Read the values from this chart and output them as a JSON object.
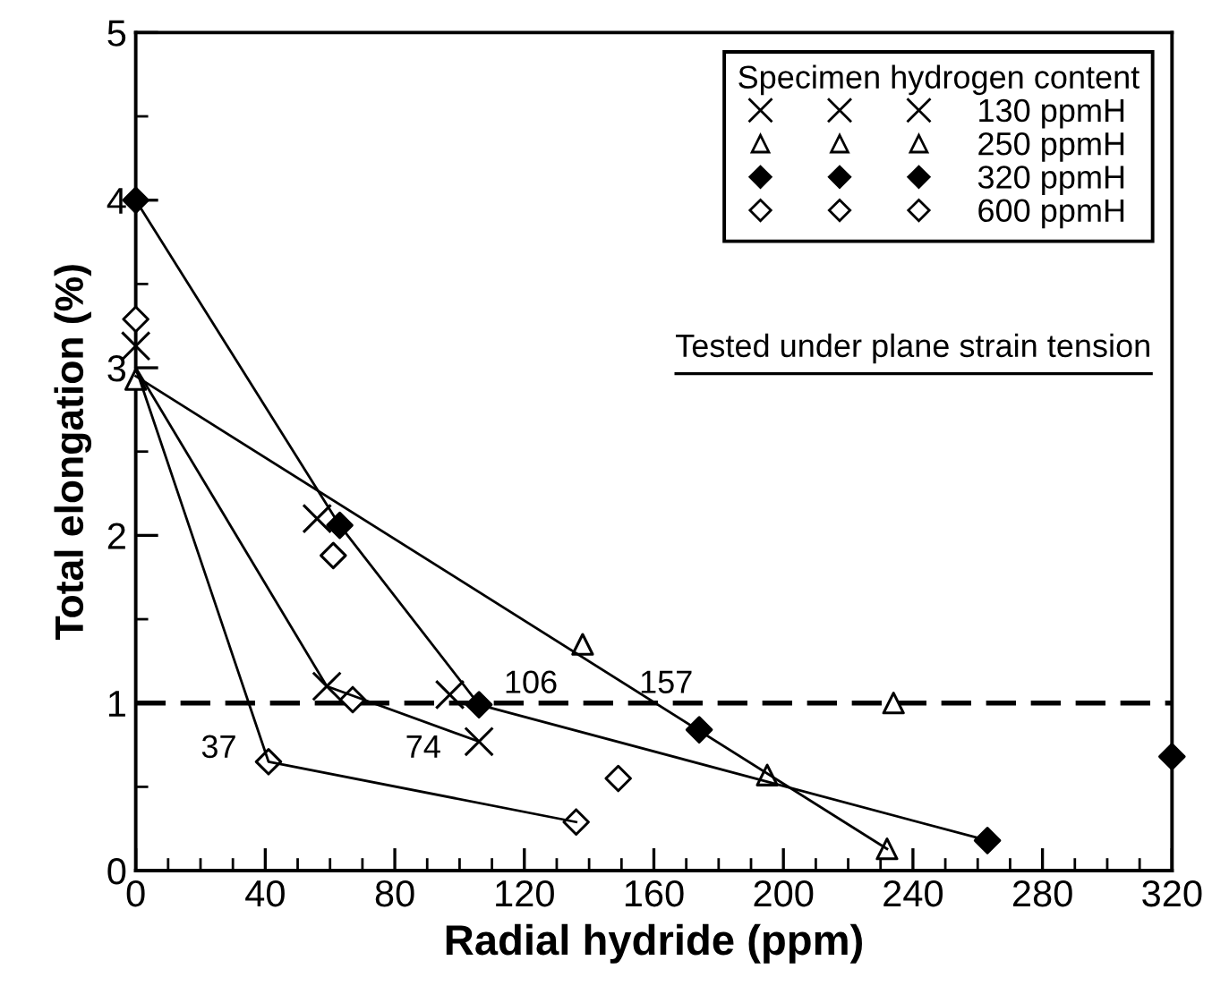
{
  "chart_data": {
    "type": "scatter",
    "xlabel": "Radial hydride (ppm)",
    "ylabel": "Total elongation (%)",
    "legend_title": "Specimen hydrogen content",
    "legend": "top right",
    "xlim": [
      0,
      320
    ],
    "xticks": [
      0,
      40,
      80,
      120,
      160,
      200,
      240,
      280,
      320
    ],
    "ylim": [
      0,
      5
    ],
    "yticks": [
      0,
      1,
      2,
      3,
      4,
      5
    ],
    "grid": false,
    "ref_lines": [
      {
        "axis": "y",
        "value": 1,
        "color": "#000000",
        "line_style": "dashed"
      }
    ],
    "annotations": [
      {
        "text": "37",
        "x": 37,
        "y": 1
      },
      {
        "text": "74",
        "x": 74,
        "y": 1
      },
      {
        "text": "106",
        "x": 106,
        "y": 1
      },
      {
        "text": "157",
        "x": 157,
        "y": 1
      },
      "Tested under plane strain tension"
    ],
    "series": [
      {
        "name": "130 ppmH",
        "marker": "cross",
        "color": "#000000",
        "x": [
          0,
          56,
          59,
          97,
          106
        ],
        "values": [
          3.13,
          2.1,
          1.1,
          1.05,
          0.77
        ]
      },
      {
        "name": "250 ppmH",
        "marker": "triangle",
        "color": "#ffffff",
        "x": [
          0,
          138,
          234,
          195,
          232
        ],
        "values": [
          2.93,
          1.35,
          1.0,
          0.57,
          0.13
        ]
      },
      {
        "name": "320 ppmH",
        "marker": "diamond",
        "color": "#000000",
        "x": [
          0,
          63,
          106,
          174,
          263,
          320
        ],
        "values": [
          4.0,
          2.06,
          0.99,
          0.84,
          0.18,
          0.68
        ]
      },
      {
        "name": "600 ppmH",
        "marker": "diamond",
        "color": "#ffffff",
        "x": [
          0,
          61,
          67,
          41,
          136,
          149
        ],
        "values": [
          3.29,
          1.88,
          1.02,
          0.65,
          0.29,
          0.55
        ]
      },
      {
        "type": "line",
        "marker": "none",
        "color": "#000000",
        "x": [
          0,
          41,
          136
        ],
        "values": [
          3.0,
          0.65,
          0.29
        ]
      },
      {
        "type": "line",
        "marker": "none",
        "color": "#000000",
        "x": [
          0,
          59,
          106
        ],
        "values": [
          3.0,
          1.1,
          0.77
        ]
      },
      {
        "type": "line",
        "marker": "none",
        "color": "#000000",
        "x": [
          0,
          63,
          106,
          263
        ],
        "values": [
          4.0,
          2.06,
          0.99,
          0.18
        ]
      },
      {
        "type": "line",
        "marker": "none",
        "color": "#000000",
        "x": [
          0,
          232
        ],
        "values": [
          2.95,
          0.13
        ]
      }
    ]
  }
}
